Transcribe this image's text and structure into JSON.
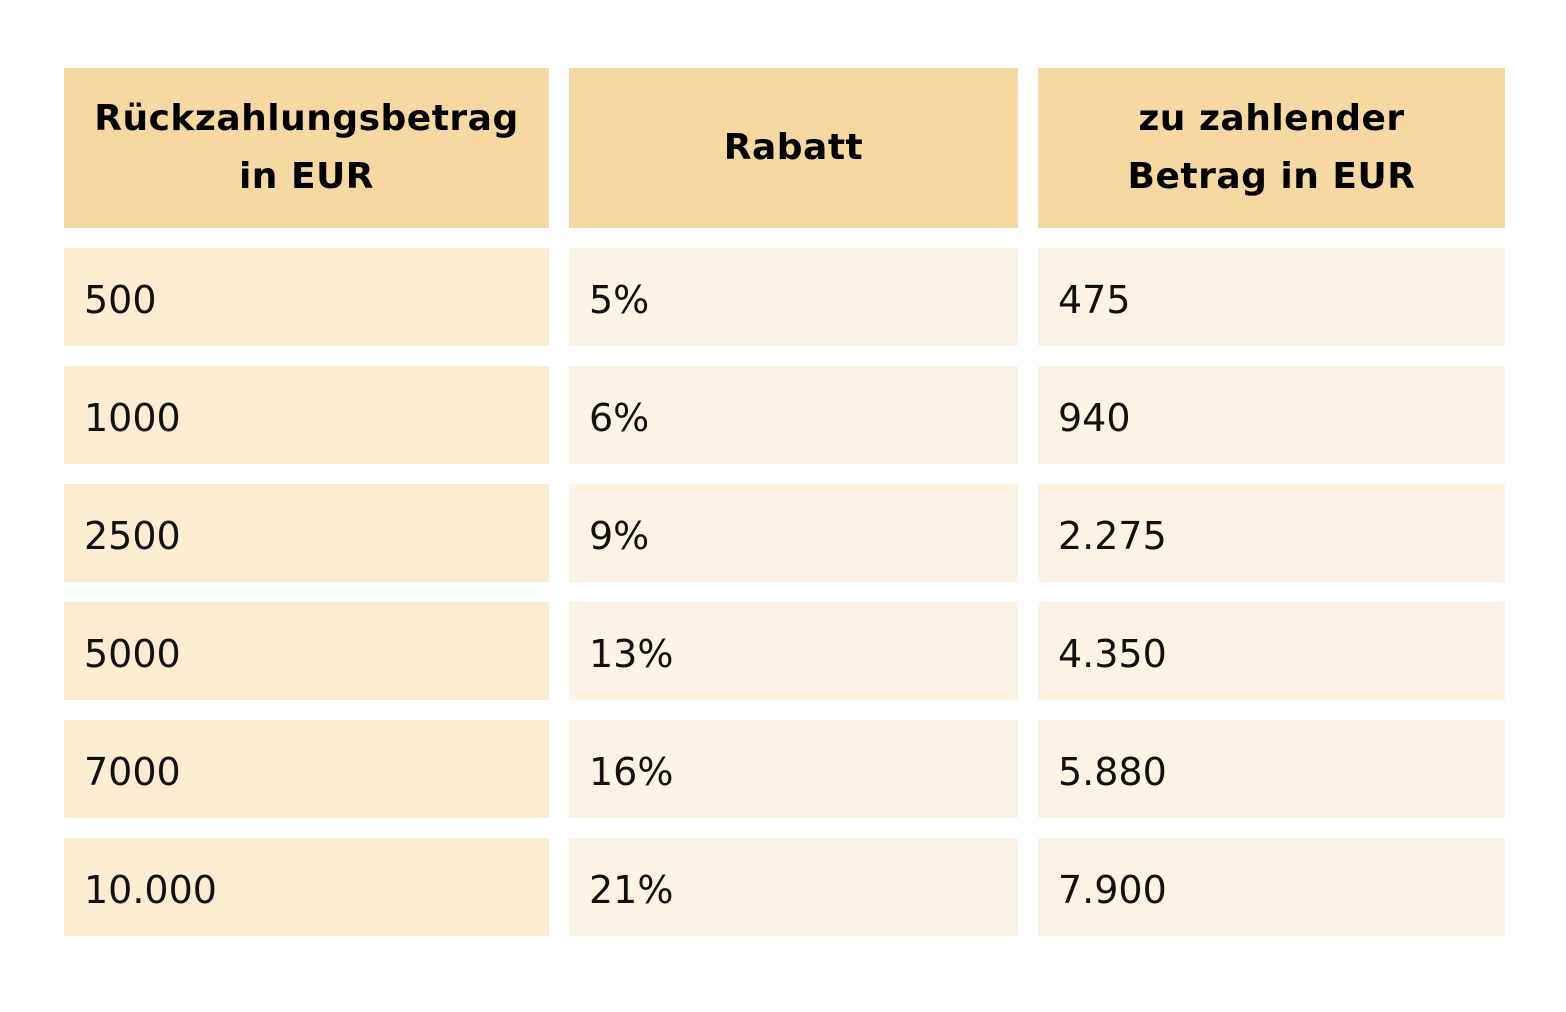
{
  "table": {
    "headers": [
      "Rückzahlungsbetrag\nin EUR",
      "Rabatt",
      "zu zahlender\nBetrag in EUR"
    ],
    "rows": [
      [
        "500",
        "5%",
        "475"
      ],
      [
        "1000",
        "6%",
        "940"
      ],
      [
        "2500",
        "9%",
        "2.275"
      ],
      [
        "5000",
        "13%",
        "4.350"
      ],
      [
        "7000",
        "16%",
        "5.880"
      ],
      [
        "10.000",
        "21%",
        "7.900"
      ]
    ]
  },
  "colors": {
    "header_bg": "#f6d8a2",
    "first_col_bg": "#fcecd2",
    "other_col_bg": "#fdf3e4",
    "text": "#000000"
  }
}
